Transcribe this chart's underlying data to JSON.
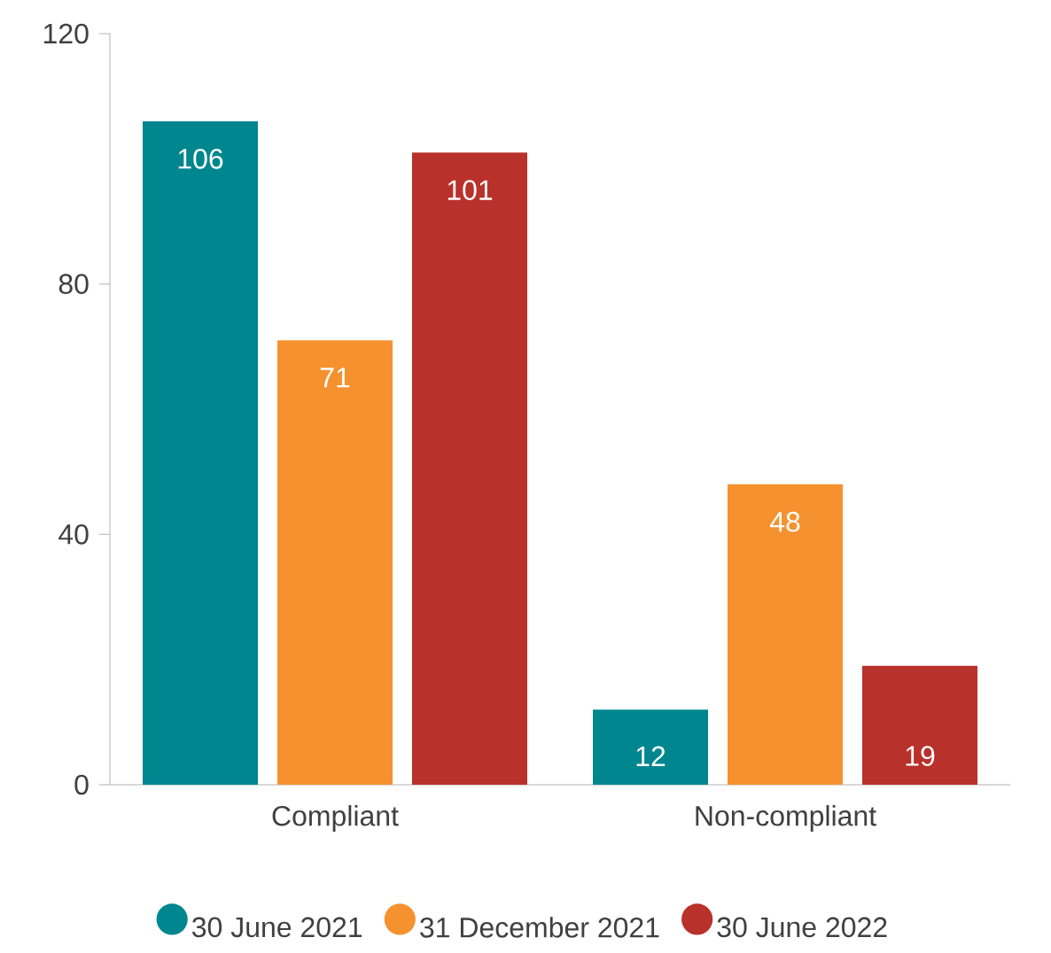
{
  "chart_data": {
    "type": "bar",
    "categories": [
      "Compliant",
      "Non-compliant"
    ],
    "series": [
      {
        "name": "30 June 2021",
        "color": "#00868f",
        "values": [
          106,
          12
        ]
      },
      {
        "name": "31 December 2021",
        "color": "#f5922f",
        "values": [
          71,
          48
        ]
      },
      {
        "name": "30 June 2022",
        "color": "#b9312b",
        "values": [
          101,
          19
        ]
      }
    ],
    "ylim": [
      0,
      120
    ],
    "yticks": [
      0,
      40,
      80,
      120
    ],
    "grid": false,
    "legend": "bottom",
    "data_labels": true
  }
}
